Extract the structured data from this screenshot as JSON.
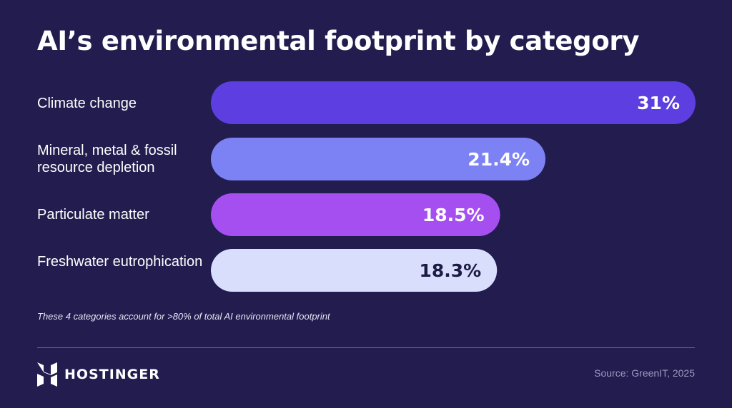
{
  "title": "AI’s environmental footprint by category",
  "chart_data": {
    "type": "bar",
    "orientation": "horizontal",
    "categories": [
      "Climate change",
      "Mineral, metal & fossil resource depletion",
      "Particulate matter",
      "Freshwater eutrophication"
    ],
    "values": [
      31,
      21.4,
      18.5,
      18.3
    ],
    "value_labels": [
      "31%",
      "21.4%",
      "18.5%",
      "18.3%"
    ],
    "unit": "%",
    "bar_colors": [
      "#5d3ee0",
      "#7c82f4",
      "#a54ff0",
      "#d8defc"
    ],
    "label_colors": [
      "#ffffff",
      "#ffffff",
      "#ffffff",
      "#1d1a44"
    ],
    "xlim": [
      0,
      31
    ]
  },
  "footnote": "These 4 categories account for >80% of total AI environmental footprint",
  "brand": {
    "name": "HOSTINGER",
    "icon": "hostinger-logo-icon"
  },
  "source": "Source: GreenIT, 2025"
}
